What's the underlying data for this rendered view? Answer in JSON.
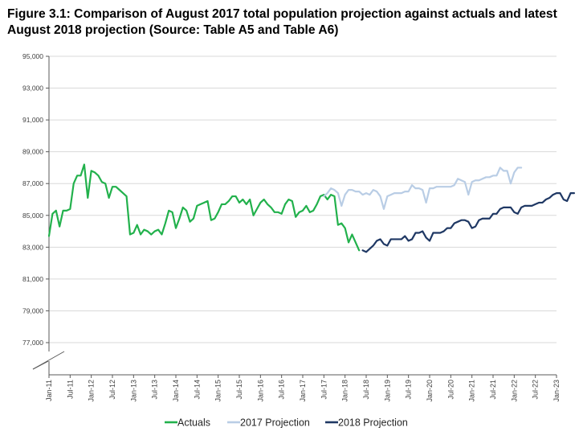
{
  "figure": {
    "title": "Figure 3.1: Comparison of August 2017 total population projection against actuals and latest August 2018 projection (Source: Table A5 and Table A6)"
  },
  "chart_data": {
    "type": "line",
    "title": "Figure 3.1: Comparison of August 2017 total population projection against actuals and latest August 2018 projection (Source: Table A5 and Table A6)",
    "xlabel": "",
    "ylabel": "",
    "ylim": [
      75000,
      95000
    ],
    "y_ticks": [
      77000,
      79000,
      81000,
      83000,
      85000,
      87000,
      89000,
      91000,
      93000,
      95000
    ],
    "y_tick_labels": [
      "77,000",
      "79,000",
      "81,000",
      "83,000",
      "85,000",
      "87,000",
      "89,000",
      "91,000",
      "93,000",
      "95,000"
    ],
    "y_axis_break": true,
    "x_tick_labels": [
      "Jan-11",
      "Jul-11",
      "Jan-12",
      "Jul-12",
      "Jan-13",
      "Jul-13",
      "Jan-14",
      "Jul-14",
      "Jan-15",
      "Jul-15",
      "Jan-16",
      "Jul-16",
      "Jan-17",
      "Jul-17",
      "Jan-18",
      "Jul-18",
      "Jan-19",
      "Jul-19",
      "Jan-20",
      "Jul-20",
      "Jan-21",
      "Jul-21",
      "Jan-22",
      "Jul-22",
      "Jan-23"
    ],
    "x_start": "Jan-11",
    "x_end": "Jan-23",
    "grid": "horizontal",
    "legend_position": "bottom",
    "series": [
      {
        "name": "Actuals",
        "color": "#22b14c",
        "start": "Jan-11",
        "values": [
          83700,
          85100,
          85300,
          84300,
          85300,
          85300,
          85400,
          87000,
          87500,
          87500,
          88200,
          86100,
          87800,
          87700,
          87500,
          87100,
          87000,
          86100,
          86800,
          86800,
          86600,
          86400,
          86200,
          83800,
          83900,
          84400,
          83800,
          84100,
          84000,
          83800,
          84000,
          84100,
          83800,
          84500,
          85300,
          85200,
          84200,
          84800,
          85500,
          85300,
          84600,
          84800,
          85600,
          85700,
          85800,
          85900,
          84700,
          84800,
          85200,
          85700,
          85700,
          85900,
          86200,
          86200,
          85800,
          86000,
          85700,
          86000,
          85000,
          85400,
          85800,
          86000,
          85700,
          85500,
          85200,
          85200,
          85100,
          85700,
          86000,
          85900,
          84900,
          85200,
          85300,
          85600,
          85200,
          85300,
          85700,
          86200,
          86300,
          86000,
          86300,
          86200,
          84400,
          84500,
          84200,
          83300,
          83800,
          83300,
          82800
        ]
      },
      {
        "name": "2017 Projection",
        "color": "#b9cde5",
        "start": "Jul-17",
        "values": [
          86200,
          86400,
          86700,
          86600,
          86400,
          85600,
          86300,
          86600,
          86600,
          86500,
          86500,
          86300,
          86400,
          86300,
          86600,
          86500,
          86200,
          85400,
          86200,
          86300,
          86400,
          86400,
          86400,
          86500,
          86500,
          86900,
          86700,
          86700,
          86600,
          85800,
          86700,
          86700,
          86800,
          86800,
          86800,
          86800,
          86800,
          86900,
          87300,
          87200,
          87100,
          86300,
          87100,
          87200,
          87200,
          87300,
          87400,
          87400,
          87500,
          87500,
          88000,
          87800,
          87800,
          87000,
          87700,
          88000,
          88000
        ]
      },
      {
        "name": "2018 Projection",
        "color": "#1f3864",
        "start": "Jun-18",
        "values": [
          82800,
          82700,
          82900,
          83100,
          83400,
          83500,
          83200,
          83100,
          83500,
          83500,
          83500,
          83500,
          83700,
          83400,
          83500,
          83900,
          83900,
          84000,
          83600,
          83400,
          83900,
          83900,
          83900,
          84000,
          84200,
          84200,
          84500,
          84600,
          84700,
          84700,
          84600,
          84200,
          84300,
          84700,
          84800,
          84800,
          84800,
          85100,
          85100,
          85400,
          85500,
          85500,
          85500,
          85200,
          85100,
          85500,
          85600,
          85600,
          85600,
          85700,
          85800,
          85800,
          86000,
          86100,
          86300,
          86400,
          86400,
          86000,
          85900,
          86400,
          86400
        ]
      }
    ]
  }
}
